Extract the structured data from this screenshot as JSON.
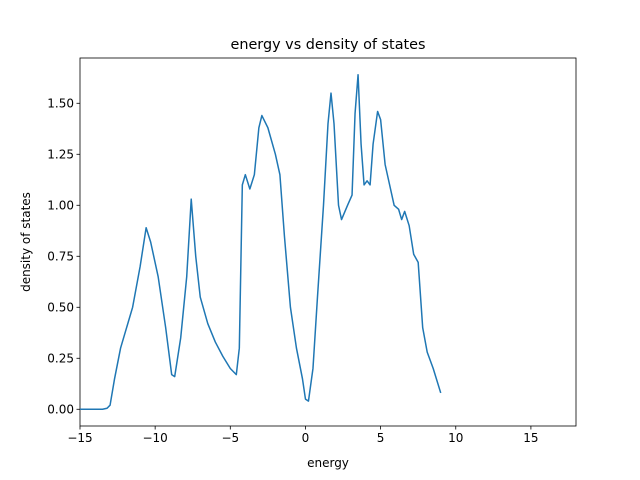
{
  "chart_data": {
    "type": "line",
    "title": "energy vs density of states",
    "xlabel": "energy",
    "ylabel": "density of states",
    "x": [
      -15,
      -14,
      -13.5,
      -13.2,
      -13,
      -12.7,
      -12.3,
      -11.5,
      -11,
      -10.6,
      -10.3,
      -9.8,
      -9.3,
      -8.9,
      -8.7,
      -8.3,
      -7.9,
      -7.6,
      -7.3,
      -7,
      -6.5,
      -6,
      -5.5,
      -5,
      -4.6,
      -4.4,
      -4.2,
      -4.0,
      -3.7,
      -3.4,
      -3.1,
      -2.9,
      -2.5,
      -2,
      -1.7,
      -1.4,
      -1,
      -0.6,
      -0.2,
      0,
      0.2,
      0.5,
      0.8,
      1.2,
      1.5,
      1.7,
      1.9,
      2.2,
      2.4,
      2.8,
      3.1,
      3.3,
      3.5,
      3.7,
      3.9,
      4.1,
      4.3,
      4.5,
      4.8,
      5.0,
      5.3,
      5.6,
      5.9,
      6.2,
      6.4,
      6.6,
      6.9,
      7.2,
      7.5,
      7.8,
      8.1,
      8.5,
      9.0
    ],
    "series": [
      {
        "color": "#1f77b4",
        "values": [
          0,
          0,
          0,
          0.005,
          0.02,
          0.15,
          0.3,
          0.5,
          0.7,
          0.89,
          0.82,
          0.65,
          0.4,
          0.17,
          0.16,
          0.35,
          0.65,
          1.03,
          0.75,
          0.55,
          0.42,
          0.33,
          0.26,
          0.2,
          0.17,
          0.3,
          1.1,
          1.15,
          1.08,
          1.15,
          1.38,
          1.44,
          1.38,
          1.25,
          1.15,
          0.85,
          0.5,
          0.3,
          0.15,
          0.05,
          0.04,
          0.2,
          0.55,
          1.0,
          1.4,
          1.55,
          1.4,
          1.0,
          0.93,
          1.0,
          1.05,
          1.45,
          1.64,
          1.3,
          1.1,
          1.12,
          1.1,
          1.3,
          1.46,
          1.42,
          1.2,
          1.1,
          1.0,
          0.98,
          0.93,
          0.97,
          0.9,
          0.76,
          0.72,
          0.4,
          0.28,
          0.2,
          0.08
        ]
      }
    ],
    "xlim": [
      -15,
      18
    ],
    "xticks": [
      {
        "value": -15,
        "label": "−15"
      },
      {
        "value": -10,
        "label": "−10"
      },
      {
        "value": -5,
        "label": "−5"
      },
      0,
      5,
      10,
      15
    ],
    "ylim": [
      -0.082,
      1.722
    ],
    "yticks": [
      {
        "value": 0,
        "label": "0.00"
      },
      {
        "value": 0.25,
        "label": "0.25"
      },
      {
        "value": 0.5,
        "label": "0.50"
      },
      {
        "value": 0.75,
        "label": "0.75"
      },
      {
        "value": 1.0,
        "label": "1.00"
      },
      {
        "value": 1.25,
        "label": "1.25"
      },
      {
        "value": 1.5,
        "label": "1.50"
      }
    ]
  }
}
